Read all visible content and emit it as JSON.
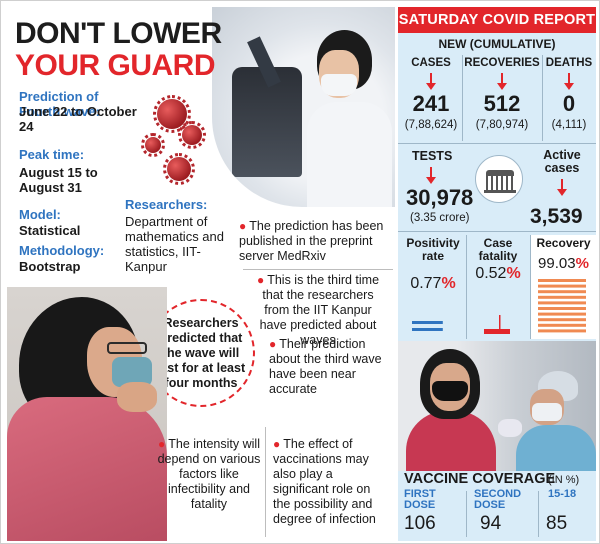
{
  "headline": {
    "line1": "DON'T LOWER",
    "line2": "YOUR GUARD"
  },
  "facts": {
    "prediction_label": "Prediction of Fourth wave:",
    "prediction_value": "June 22 to October 24",
    "peak_label": "Peak time:",
    "peak_value_1": "August 15 to",
    "peak_value_2": "August 31",
    "model_label": "Model:",
    "model_value": "Statistical",
    "method_label": "Methodology:",
    "method_value": "Bootstrap",
    "researchers_label": "Researchers:",
    "researchers_value": "Department of mathematics and statistics, IIT-Kanpur"
  },
  "bullets": {
    "b1": "The prediction has been published in the preprint server MedRxiv",
    "b2": "This is the third time that the researchers from the IIT Kanpur have predicted about waves",
    "b3": "Their prediction about the third wave have been near accurate",
    "b4": "The intensity will depend on various factors like infectibility and fatality",
    "b5": "The effect of vaccinations may also play a significant role on the possibility and degree of infection"
  },
  "callout": "Researchers predicted that the wave will last for at least four months",
  "report": {
    "title": "SATURDAY COVID REPORT",
    "subtitle": "NEW (CUMULATIVE)",
    "cases_label": "CASES",
    "cases_new": "241",
    "cases_cum": "(7,88,624)",
    "recoveries_label": "RECOVERIES",
    "recoveries_new": "512",
    "recoveries_cum": "(7,80,974)",
    "deaths_label": "DEATHS",
    "deaths_new": "0",
    "deaths_cum": "(4,111)",
    "tests_label": "TESTS",
    "tests_num": "30,978",
    "tests_sub": "(3.35 crore)",
    "active_label": "Active cases",
    "active_num": "3,539",
    "positivity_label": "Positivity rate",
    "positivity_value": "0.77",
    "positivity_pct": 0.77,
    "fatality_label": "Case fatality",
    "fatality_value": "0.52",
    "fatality_pct": 0.52,
    "recovery_label": "Recovery",
    "recovery_value": "99.03",
    "recovery_pct": 99.03,
    "pct_sign": "%",
    "accent": "#e2262b",
    "blue": "#2f74c0"
  },
  "vaccine": {
    "title": "VACCINE COVERAGE",
    "unit": "(IN %)",
    "first_label_1": "FIRST",
    "first_label_2": "DOSE",
    "first_value": "106",
    "second_label_1": "SECOND",
    "second_label_2": "DOSE",
    "second_value": "94",
    "teen_label": "15-18",
    "teen_value": "85"
  }
}
